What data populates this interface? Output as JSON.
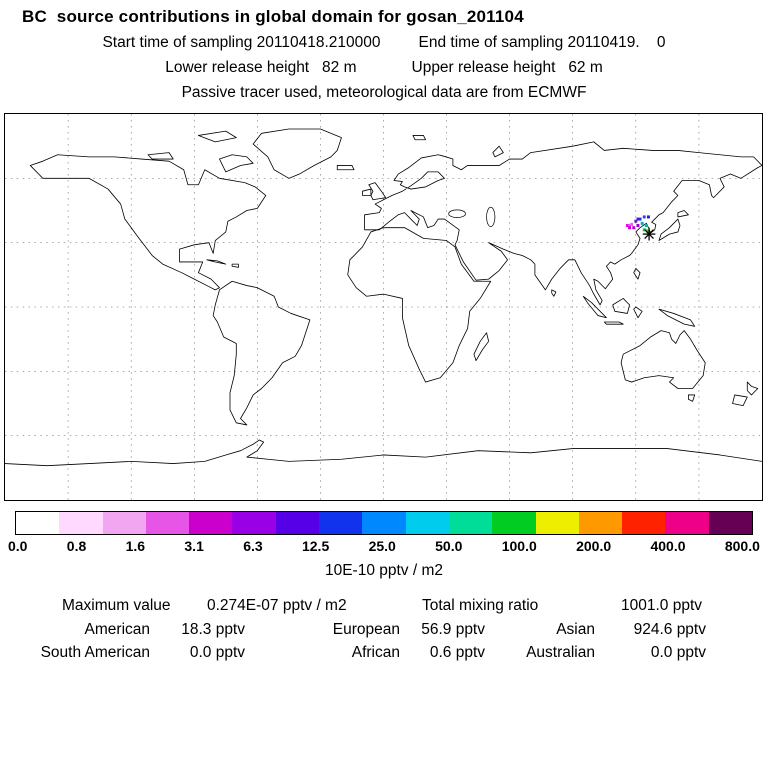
{
  "header": {
    "title": "BC  source contributions in global domain for gosan_201104",
    "sampling_start": "Start time of sampling 20110418.210000",
    "sampling_end": "End time of sampling 20110419.    0",
    "lower_release": "Lower release height   82 m",
    "upper_release": "Upper release height   62 m",
    "tracer_info": "Passive tracer used, meteorological data are from ECMWF"
  },
  "colorbar": {
    "unit_label": "10E-10 pptv / m2",
    "tick_labels": [
      "0.0",
      "0.8",
      "1.6",
      "3.1",
      "6.3",
      "12.5",
      "25.0",
      "50.0",
      "100.0",
      "200.0",
      "400.0",
      "800.0"
    ],
    "colors": [
      "#ffffff",
      "#ffd9ff",
      "#f2a6f2",
      "#e655e6",
      "#cc00cc",
      "#9900e6",
      "#5500e6",
      "#1133ee",
      "#0088ff",
      "#00ccee",
      "#00dd99",
      "#00cc22",
      "#eeee00",
      "#ff9900",
      "#ff2200",
      "#ee0088",
      "#660055"
    ]
  },
  "stats": {
    "maximum": {
      "label": "Maximum value",
      "value": "0.274E-07 pptv / m2"
    },
    "total": {
      "label": "Total mixing ratio",
      "value": "1001.0 pptv"
    },
    "regions": [
      {
        "label": "American",
        "value": "18.3 pptv"
      },
      {
        "label": "European",
        "value": "56.9 pptv"
      },
      {
        "label": "Asian",
        "value": "924.6 pptv"
      },
      {
        "label": "South American",
        "value": "0.0 pptv"
      },
      {
        "label": "African",
        "value": "0.6 pptv"
      },
      {
        "label": "Australian",
        "value": "0.0 pptv"
      }
    ]
  },
  "map": {
    "receptor": {
      "name": "gosan",
      "lon": 126.3,
      "lat": 34.0
    },
    "source_pixels": [
      {
        "lon": 116,
        "lat": 38,
        "color": "#ee00ee"
      },
      {
        "lon": 117,
        "lat": 38,
        "color": "#ff44ff"
      },
      {
        "lon": 117,
        "lat": 37,
        "color": "#cc00cc"
      },
      {
        "lon": 118,
        "lat": 38.5,
        "color": "#e066e0"
      },
      {
        "lon": 119,
        "lat": 37,
        "color": "#bb00dd"
      },
      {
        "lon": 120,
        "lat": 40,
        "color": "#7711cc"
      },
      {
        "lon": 121,
        "lat": 41,
        "color": "#4422cc"
      },
      {
        "lon": 121,
        "lat": 38,
        "color": "#9900cc"
      },
      {
        "lon": 122,
        "lat": 41,
        "color": "#2233dd"
      },
      {
        "lon": 123,
        "lat": 39,
        "color": "#00aacc"
      },
      {
        "lon": 124,
        "lat": 42,
        "color": "#3344ee"
      },
      {
        "lon": 126,
        "lat": 42,
        "color": "#2222cc"
      },
      {
        "lon": 125,
        "lat": 38,
        "color": "#00bbaa"
      },
      {
        "lon": 124,
        "lat": 36,
        "color": "#00cc55"
      },
      {
        "lon": 125.5,
        "lat": 35.5,
        "color": "#44cc00"
      }
    ]
  }
}
